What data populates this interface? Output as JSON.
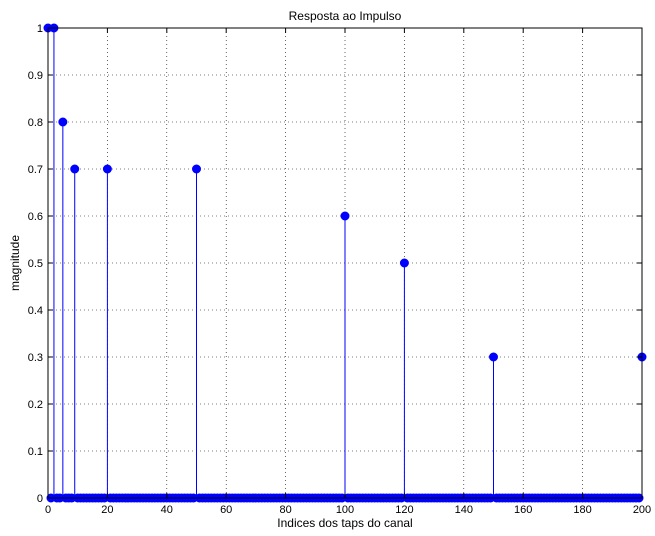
{
  "chart_data": {
    "type": "stem",
    "title": "Resposta ao Impulso",
    "xlabel": "Indices dos taps do canal",
    "ylabel": "magnitude",
    "xlim": [
      0,
      200
    ],
    "ylim": [
      0,
      1
    ],
    "xticks": [
      0,
      20,
      40,
      60,
      80,
      100,
      120,
      140,
      160,
      180,
      200
    ],
    "yticks": [
      0,
      0.1,
      0.2,
      0.3,
      0.4,
      0.5,
      0.6,
      0.7,
      0.8,
      0.9,
      1
    ],
    "grid": true,
    "series": [
      {
        "color": "#0000ff",
        "x_range": [
          0,
          200
        ],
        "default_value": 0,
        "nonzero": [
          {
            "x": 0,
            "y": 1.0
          },
          {
            "x": 2,
            "y": 1.0
          },
          {
            "x": 5,
            "y": 0.8
          },
          {
            "x": 9,
            "y": 0.7
          },
          {
            "x": 20,
            "y": 0.7
          },
          {
            "x": 50,
            "y": 0.7
          },
          {
            "x": 100,
            "y": 0.6
          },
          {
            "x": 120,
            "y": 0.5
          },
          {
            "x": 150,
            "y": 0.3
          },
          {
            "x": 200,
            "y": 0.3
          }
        ]
      }
    ]
  }
}
